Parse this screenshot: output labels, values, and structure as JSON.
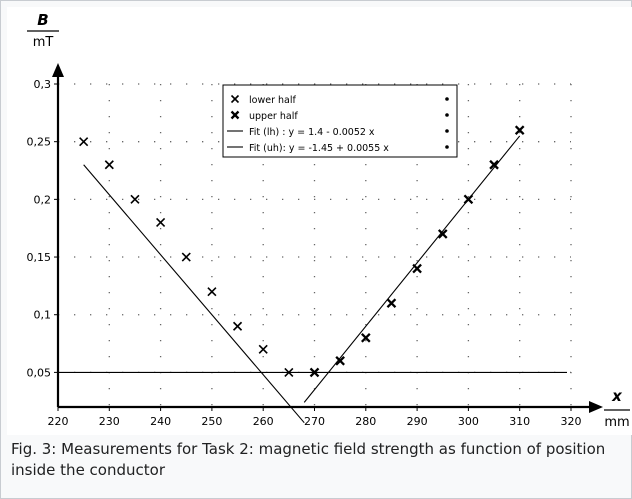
{
  "caption": "Fig. 3: Measurements for Task 2: magnetic field strength as function of position inside the conductor",
  "chart_data": {
    "type": "scatter",
    "title": "",
    "ylabel_symbol": "B",
    "ylabel_unit": "mT",
    "xlabel_symbol": "x",
    "xlabel_unit": "mm",
    "xlim": [
      220,
      320
    ],
    "ylim": [
      0.02,
      0.3
    ],
    "x_ticks": [
      "220",
      "230",
      "240",
      "250",
      "260",
      "270",
      "280",
      "290",
      "300",
      "310",
      "320"
    ],
    "y_ticks": [
      "0,05",
      "0,1",
      "0,15",
      "0,2",
      "0,25",
      "0,3"
    ],
    "grid": "dotted",
    "legend_position": "top-center",
    "legend": [
      "lower half",
      "upper half",
      "Fit (lh) : y = 1.4 - 0.0052 x",
      "Fit (uh): y = -1.45 + 0.0055 x"
    ],
    "series": [
      {
        "name": "lower half",
        "marker": "x",
        "x": [
          225,
          230,
          235,
          240,
          245,
          250,
          255,
          260,
          265
        ],
        "y": [
          0.25,
          0.23,
          0.2,
          0.18,
          0.15,
          0.12,
          0.09,
          0.07,
          0.05
        ]
      },
      {
        "name": "upper half",
        "marker": "x",
        "x": [
          270,
          275,
          280,
          285,
          290,
          295,
          300,
          305,
          310
        ],
        "y": [
          0.05,
          0.06,
          0.08,
          0.11,
          0.14,
          0.17,
          0.2,
          0.23,
          0.26
        ]
      }
    ],
    "fit_lines": [
      {
        "name": "Fit (lh) : y = 1.4 - 0.0052 x",
        "intercept": 1.4,
        "slope": -0.0052
      },
      {
        "name": "Fit (uh): y = -1.45 + 0.0055 x",
        "intercept": -1.45,
        "slope": 0.0055
      }
    ],
    "baseline": 0.05
  }
}
